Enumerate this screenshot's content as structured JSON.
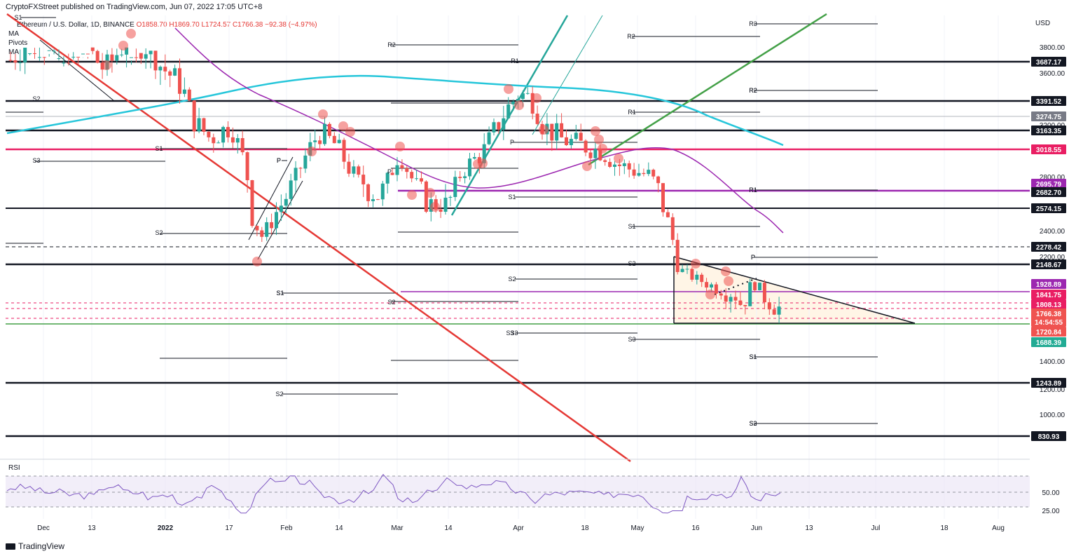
{
  "header": {
    "published": "CryptoFXStreet published on TradingView.com, Jun 07, 2022 17:05 UTC+8"
  },
  "legend": {
    "symbol": "Ethereum / U.S. Dollar, 1D, BINANCE",
    "ohlc": "O1858.70 H1869.70 L1724.57 C1766.38 −92.38 (−4.97%)",
    "items": [
      "MA",
      "Pivots",
      "MA"
    ]
  },
  "brand": "TradingView",
  "chart_data": {
    "type": "candlestick",
    "currency_label": "USD",
    "x_axis_labels": [
      "Dec",
      "13",
      "2022",
      "17",
      "Feb",
      "14",
      "Mar",
      "14",
      "Apr",
      "18",
      "May",
      "16",
      "Jun",
      "13",
      "Jul",
      "18",
      "Aug"
    ],
    "y_axis_ticks": [
      "3800.00",
      "3600.00",
      "3200.00",
      "2800.00",
      "2400.00",
      "2200.00",
      "1400.00",
      "1200.00",
      "1000.00"
    ],
    "price_labels": [
      {
        "value": "3687.17",
        "bg": "#131722",
        "fg": "#ffffff"
      },
      {
        "value": "3391.52",
        "bg": "#131722",
        "fg": "#ffffff"
      },
      {
        "value": "3274.75",
        "bg": "#787b86",
        "fg": "#ffffff"
      },
      {
        "value": "3163.35",
        "bg": "#131722",
        "fg": "#ffffff"
      },
      {
        "value": "3018.55",
        "bg": "#e91e63",
        "fg": "#ffffff"
      },
      {
        "value": "2695.79",
        "bg": "#9c27b0",
        "fg": "#ffffff"
      },
      {
        "value": "2682.70",
        "bg": "#131722",
        "fg": "#ffffff"
      },
      {
        "value": "2574.15",
        "bg": "#131722",
        "fg": "#ffffff"
      },
      {
        "value": "2278.42",
        "bg": "#131722",
        "fg": "#ffffff"
      },
      {
        "value": "2148.67",
        "bg": "#131722",
        "fg": "#ffffff"
      },
      {
        "value": "1928.89",
        "bg": "#9c27b0",
        "fg": "#ffffff"
      },
      {
        "value": "1841.75",
        "bg": "#e91e63",
        "fg": "#ffffff"
      },
      {
        "value": "1808.13",
        "bg": "#e91e63",
        "fg": "#ffffff"
      },
      {
        "value": "1766.38",
        "bg": "#ef5350",
        "fg": "#ffffff"
      },
      {
        "value": "14:54:55",
        "bg": "#ef5350",
        "fg": "#ffffff"
      },
      {
        "value": "1720.84",
        "bg": "#ef5350",
        "fg": "#ffffff"
      },
      {
        "value": "1688.39",
        "bg": "#22ab94",
        "fg": "#ffffff"
      },
      {
        "value": "1243.89",
        "bg": "#131722",
        "fg": "#ffffff"
      },
      {
        "value": "830.93",
        "bg": "#131722",
        "fg": "#ffffff"
      }
    ],
    "pivot_labels": [
      "S1",
      "S2",
      "S3",
      "P",
      "S1",
      "S2",
      "P",
      "S1",
      "S2",
      "S1",
      "S2",
      "S3",
      "R2",
      "R1",
      "P",
      "S1",
      "S2",
      "S3",
      "P",
      "R1",
      "R2",
      "S1",
      "S2",
      "S3",
      "P",
      "R1",
      "R2",
      "S1",
      "S3",
      "R3",
      "R2",
      "R1",
      "P",
      "S1",
      "S2"
    ],
    "rsi": {
      "label": "RSI",
      "ticks": [
        "50.00",
        "25.00"
      ],
      "upper_band": 70,
      "lower_band": 30,
      "last_value": 38
    },
    "colors": {
      "up": "#26a69a",
      "down": "#ef5350",
      "ma_long": "#26c6da",
      "ma_short": "#9c27b0",
      "downtrend_line": "#e53935",
      "uptrend_line": "#26a69a",
      "green_trend": "#43a047"
    }
  }
}
